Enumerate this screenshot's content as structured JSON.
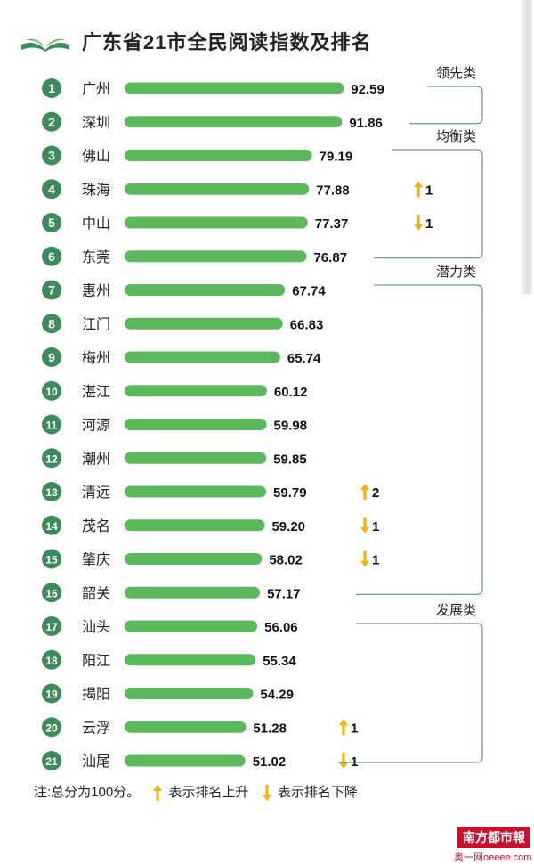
{
  "title": "广东省21市全民阅读指数及排名",
  "chart_data": {
    "type": "bar",
    "orientation": "horizontal",
    "title": "广东省21市全民阅读指数及排名",
    "xlim": [
      0,
      100
    ],
    "bar_color": "#5cb85c",
    "rank_badge_color": "#3d8b5a",
    "arrow_color": "#f0b400",
    "rows": [
      {
        "rank": "1",
        "city": "广州",
        "value": 92.59,
        "change_dir": "",
        "change": ""
      },
      {
        "rank": "2",
        "city": "深圳",
        "value": 91.86,
        "change_dir": "",
        "change": ""
      },
      {
        "rank": "3",
        "city": "佛山",
        "value": 79.19,
        "change_dir": "",
        "change": ""
      },
      {
        "rank": "4",
        "city": "珠海",
        "value": 77.88,
        "change_dir": "up",
        "change": "1"
      },
      {
        "rank": "5",
        "city": "中山",
        "value": 77.37,
        "change_dir": "down",
        "change": "1"
      },
      {
        "rank": "6",
        "city": "东莞",
        "value": 76.87,
        "change_dir": "",
        "change": ""
      },
      {
        "rank": "7",
        "city": "惠州",
        "value": 67.74,
        "change_dir": "",
        "change": ""
      },
      {
        "rank": "8",
        "city": "江门",
        "value": 66.83,
        "change_dir": "",
        "change": ""
      },
      {
        "rank": "9",
        "city": "梅州",
        "value": 65.74,
        "change_dir": "",
        "change": ""
      },
      {
        "rank": "10",
        "city": "湛江",
        "value": 60.12,
        "change_dir": "",
        "change": ""
      },
      {
        "rank": "11",
        "city": "河源",
        "value": 59.98,
        "change_dir": "",
        "change": ""
      },
      {
        "rank": "12",
        "city": "潮州",
        "value": 59.85,
        "change_dir": "",
        "change": ""
      },
      {
        "rank": "13",
        "city": "清远",
        "value": 59.79,
        "change_dir": "up",
        "change": "2"
      },
      {
        "rank": "14",
        "city": "茂名",
        "value": 59.2,
        "change_dir": "down",
        "change": "1"
      },
      {
        "rank": "15",
        "city": "肇庆",
        "value": 58.02,
        "change_dir": "down",
        "change": "1"
      },
      {
        "rank": "16",
        "city": "韶关",
        "value": 57.17,
        "change_dir": "",
        "change": ""
      },
      {
        "rank": "17",
        "city": "汕头",
        "value": 56.06,
        "change_dir": "",
        "change": ""
      },
      {
        "rank": "18",
        "city": "阳江",
        "value": 55.34,
        "change_dir": "",
        "change": ""
      },
      {
        "rank": "19",
        "city": "揭阳",
        "value": 54.29,
        "change_dir": "",
        "change": ""
      },
      {
        "rank": "20",
        "city": "云浮",
        "value": 51.28,
        "change_dir": "up",
        "change": "1"
      },
      {
        "rank": "21",
        "city": "汕尾",
        "value": 51.02,
        "change_dir": "down",
        "change": "1"
      }
    ],
    "groups": [
      {
        "label": "领先类",
        "first_rank": 1,
        "last_rank": 2
      },
      {
        "label": "均衡类",
        "first_rank": 3,
        "last_rank": 6
      },
      {
        "label": "潜力类",
        "first_rank": 7,
        "last_rank": 16
      },
      {
        "label": "发展类",
        "first_rank": 17,
        "last_rank": 21
      }
    ]
  },
  "note": {
    "prefix": "注:总分为100分。",
    "up_label": "表示排名上升",
    "down_label": "表示排名下降"
  },
  "brand": {
    "logo": "南方都市報",
    "sub": "奥一网oeeee.com"
  }
}
